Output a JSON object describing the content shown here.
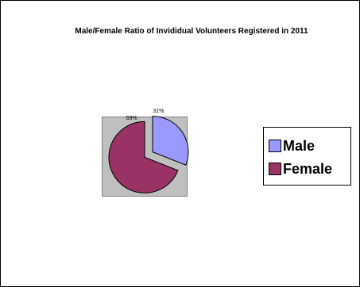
{
  "chart_data": {
    "type": "pie",
    "title": "Male/Female Ratio of Invididual Volunteers Registered in 2011",
    "categories": [
      "Male",
      "Female"
    ],
    "values": [
      31,
      69
    ],
    "data_labels": [
      "31%",
      "69%"
    ],
    "colors": [
      "#9999ff",
      "#993366"
    ],
    "legend_position": "right",
    "exploded": true
  }
}
